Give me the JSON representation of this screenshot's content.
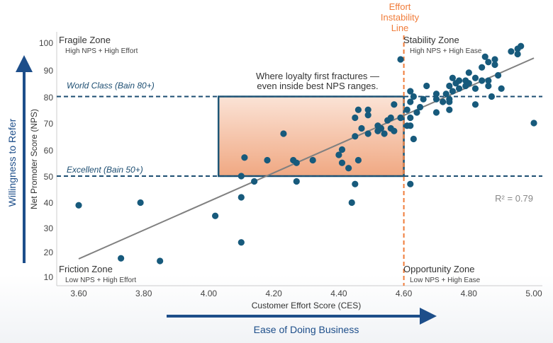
{
  "chart_data": {
    "type": "scatter",
    "xlabel": "Customer Effort Score (CES)",
    "ylabel": "Net Promoter Score (NPS)",
    "xlim": [
      3.6,
      5.0
    ],
    "ylim": [
      10,
      100
    ],
    "x_ticks": [
      "3.60",
      "3.80",
      "4.00",
      "4.20",
      "4.40",
      "4.60",
      "4.80",
      "5.00"
    ],
    "y_ticks": [
      "100",
      "90",
      "80",
      "70",
      "60",
      "50",
      "40",
      "30",
      "20",
      "10"
    ],
    "grid": false,
    "outer_labels": {
      "y": "Willingness to Refer",
      "x": "Ease of Doing Business"
    },
    "colors": {
      "points": "#175a7c",
      "trend": "#808080",
      "instability": "#f07c3a",
      "benchmark": "#1d4e72",
      "box_top": "#fbe3d6",
      "box_bottom": "#f0a882",
      "arrow": "#1d4e8a"
    },
    "reference_lines": {
      "horizontal": [
        {
          "y": 80,
          "label": "World Class (Bain 80+)"
        },
        {
          "y": 50,
          "label": "Excellent (Bain 50+)"
        }
      ],
      "vertical": {
        "x": 4.6,
        "label_lines": [
          "Effort",
          "Instability",
          "Line"
        ]
      }
    },
    "highlight_box": {
      "x": [
        4.03,
        4.6
      ],
      "y": [
        50,
        80
      ],
      "annotation_lines": [
        "Where loyalty first fractures —",
        "even inside best NPS ranges."
      ]
    },
    "zones": [
      {
        "title": "Fragile Zone",
        "subtitle": "High NPS + High Effort"
      },
      {
        "title": "Stability Zone",
        "subtitle": "High NPS + High Ease"
      },
      {
        "title": "Friction Zone",
        "subtitle": "Low NPS + High Effort"
      },
      {
        "title": "Opportunity Zone",
        "subtitle": "Low NPS + High Ease"
      }
    ],
    "trendline": {
      "x": [
        3.6,
        5.0
      ],
      "y": [
        18.8,
        94.5
      ],
      "r2_label": "R² = 0.79"
    },
    "points": [
      [
        3.6,
        39
      ],
      [
        3.73,
        19
      ],
      [
        3.79,
        40
      ],
      [
        3.85,
        18
      ],
      [
        4.02,
        35
      ],
      [
        4.1,
        25
      ],
      [
        4.1,
        42
      ],
      [
        4.44,
        40
      ],
      [
        4.62,
        47
      ],
      [
        5.0,
        70
      ],
      [
        4.57,
        77
      ],
      [
        4.46,
        75
      ],
      [
        4.49,
        75
      ],
      [
        4.49,
        73
      ],
      [
        4.45,
        72
      ],
      [
        4.56,
        72
      ],
      [
        4.55,
        71
      ],
      [
        4.52,
        69
      ],
      [
        4.47,
        68
      ],
      [
        4.56,
        68
      ],
      [
        4.52,
        67
      ],
      [
        4.53,
        68
      ],
      [
        4.54,
        66
      ],
      [
        4.57,
        67
      ],
      [
        4.49,
        66
      ],
      [
        4.45,
        65
      ],
      [
        4.23,
        66
      ],
      [
        4.41,
        60
      ],
      [
        4.4,
        58
      ],
      [
        4.41,
        55
      ],
      [
        4.43,
        53
      ],
      [
        4.46,
        56
      ],
      [
        4.32,
        56
      ],
      [
        4.26,
        56
      ],
      [
        4.27,
        55
      ],
      [
        4.18,
        56
      ],
      [
        4.11,
        57
      ],
      [
        4.1,
        50
      ],
      [
        4.14,
        48
      ],
      [
        4.27,
        48
      ],
      [
        4.45,
        47
      ],
      [
        4.59,
        94
      ],
      [
        4.96,
        99
      ],
      [
        4.95,
        98
      ],
      [
        4.93,
        97
      ],
      [
        4.95,
        96
      ],
      [
        4.85,
        95
      ],
      [
        4.88,
        94
      ],
      [
        4.86,
        93
      ],
      [
        4.88,
        92
      ],
      [
        4.84,
        91
      ],
      [
        4.8,
        89
      ],
      [
        4.89,
        88
      ],
      [
        4.75,
        87
      ],
      [
        4.82,
        87
      ],
      [
        4.79,
        86
      ],
      [
        4.77,
        86
      ],
      [
        4.76,
        85
      ],
      [
        4.8,
        85
      ],
      [
        4.86,
        86
      ],
      [
        4.84,
        86
      ],
      [
        4.74,
        84
      ],
      [
        4.79,
        84
      ],
      [
        4.86,
        84
      ],
      [
        4.82,
        83
      ],
      [
        4.9,
        83
      ],
      [
        4.67,
        84
      ],
      [
        4.77,
        83
      ],
      [
        4.75,
        82
      ],
      [
        4.62,
        82
      ],
      [
        4.7,
        81
      ],
      [
        4.73,
        81
      ],
      [
        4.87,
        80
      ],
      [
        4.63,
        80
      ],
      [
        4.66,
        79
      ],
      [
        4.7,
        79
      ],
      [
        4.72,
        78
      ],
      [
        4.74,
        79
      ],
      [
        4.74,
        78
      ],
      [
        4.62,
        78
      ],
      [
        4.82,
        77
      ],
      [
        4.74,
        75
      ],
      [
        4.65,
        76
      ],
      [
        4.64,
        74
      ],
      [
        4.61,
        75
      ],
      [
        4.7,
        74
      ],
      [
        4.59,
        72
      ],
      [
        4.59,
        72
      ],
      [
        4.62,
        72
      ],
      [
        4.62,
        69
      ],
      [
        4.61,
        69
      ],
      [
        4.63,
        64
      ]
    ]
  }
}
